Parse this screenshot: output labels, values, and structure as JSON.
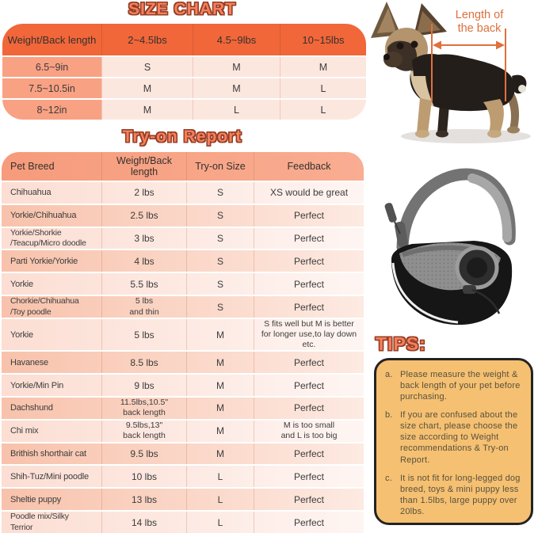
{
  "size_chart": {
    "title": "SIZE CHART",
    "columns": [
      "Weight/Back length",
      "2~4.5lbs",
      "4.5~9lbs",
      "10~15lbs"
    ],
    "rows": [
      {
        "label": "6.5~9in",
        "values": [
          "S",
          "M",
          "M"
        ]
      },
      {
        "label": "7.5~10.5in",
        "values": [
          "M",
          "M",
          "L"
        ]
      },
      {
        "label": "8~12in",
        "values": [
          "M",
          "L",
          "L"
        ]
      }
    ]
  },
  "tryon_report": {
    "title": "Try-on Report",
    "columns": [
      "Pet Breed",
      "Weight/Back length",
      "Try-on Size",
      "Feedback"
    ],
    "rows": [
      [
        "Chihuahua",
        "2 lbs",
        "S",
        "XS would be great"
      ],
      [
        "Yorkie/Chihuahua",
        "2.5 lbs",
        "S",
        "Perfect"
      ],
      [
        "Yorkie/Shorkie\n/Teacup/Micro doodle",
        "3 lbs",
        "S",
        "Perfect"
      ],
      [
        "Parti Yorkie/Yorkie",
        "4 lbs",
        "S",
        "Perfect"
      ],
      [
        "Yorkie",
        "5.5 lbs",
        "S",
        "Perfect"
      ],
      [
        "Chorkie/Chihuahua\n/Toy poodle",
        "5 lbs\nand thin",
        "S",
        "Perfect"
      ],
      [
        "Yorkie",
        "5 lbs",
        "M",
        "S fits well but M is better\nfor longer use,to lay down etc."
      ],
      [
        "Havanese",
        "8.5 lbs",
        "M",
        "Perfect"
      ],
      [
        "Yorkie/Min Pin",
        "9 lbs",
        "M",
        "Perfect"
      ],
      [
        "Dachshund",
        "11.5lbs,10.5\"\nback length",
        "M",
        "Perfect"
      ],
      [
        "Chi mix",
        "9.5lbs,13\"\nback length",
        "M",
        "M is too small\nand L is too big"
      ],
      [
        "Brithish shorthair cat",
        "9.5 lbs",
        "M",
        "Perfect"
      ],
      [
        "Shih-Tuz/Mini poodle",
        "10 lbs",
        "L",
        "Perfect"
      ],
      [
        "Sheltie puppy",
        "13 lbs",
        "L",
        "Perfect"
      ],
      [
        "Poodle mix/Silky\n Terrior",
        "14 lbs",
        "L",
        "Perfect"
      ]
    ]
  },
  "dog_figure": {
    "annotation": "Length of\nthe back"
  },
  "tips": {
    "title": "TIPS:",
    "items": [
      {
        "marker": "a.",
        "text": "Please measure the weight & back length of your pet before purchasing."
      },
      {
        "marker": "b.",
        "text": "If you are confused about the size chart, please choose the size according to Weight recommendations & Try-on Report."
      },
      {
        "marker": "c.",
        "text": "It is not fit for long-legged dog breed, toys & mini puppy less than 1.5lbs, large puppy over 20lbs."
      }
    ]
  },
  "colors": {
    "header_orange": "#f1673a",
    "label_salmon": "#f9a183",
    "cell_pink": "#fce7df",
    "row_dark": "#f8c2ab",
    "row_light": "#fcded3",
    "title_orange": "#f5805c",
    "title_outline": "#943d25",
    "annotation_orange": "#dd6f3c",
    "tips_background": "#f5c071",
    "tips_border": "#232323"
  }
}
